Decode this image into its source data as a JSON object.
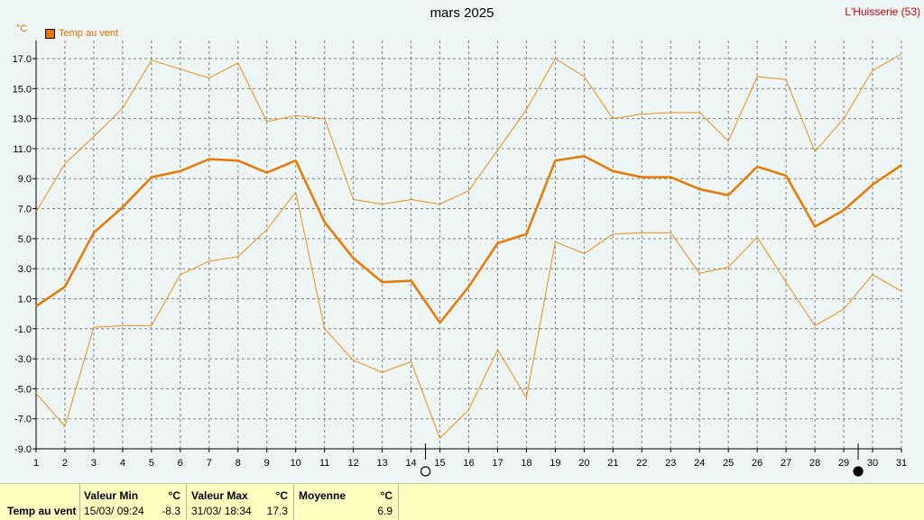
{
  "chart_data": {
    "type": "line",
    "title": "mars 2025",
    "station": "L'Huisserie (53)",
    "unit": "°C",
    "legend": "Temp au vent",
    "x": [
      1,
      2,
      3,
      4,
      5,
      6,
      7,
      8,
      9,
      10,
      11,
      12,
      13,
      14,
      15,
      16,
      17,
      18,
      19,
      20,
      21,
      22,
      23,
      24,
      25,
      26,
      27,
      28,
      29,
      30,
      31
    ],
    "yticks": [
      "-9.0",
      "-7.0",
      "-5.0",
      "-3.0",
      "-1.0",
      "1.0",
      "3.0",
      "5.0",
      "7.0",
      "9.0",
      "11.0",
      "13.0",
      "15.0",
      "17.0"
    ],
    "ylim": [
      -9,
      18
    ],
    "xlim": [
      1,
      31
    ],
    "series": [
      {
        "role": "max",
        "color": "#f08c14",
        "width": 1,
        "values": [
          6.8,
          10,
          11.8,
          13.7,
          16.9,
          16.3,
          15.7,
          16.7,
          12.8,
          13.2,
          13.0,
          7.6,
          7.3,
          7.6,
          7.3,
          8.2,
          10.9,
          13.6,
          17.0,
          15.8,
          13.0,
          13.3,
          13.4,
          13.4,
          11.5,
          15.8,
          15.6,
          10.8,
          13.0,
          16.2,
          17.3
        ]
      },
      {
        "role": "mean",
        "color": "#e87800",
        "width": 2.5,
        "values": [
          0.5,
          1.8,
          5.4,
          7.1,
          9.1,
          9.5,
          10.3,
          10.2,
          9.4,
          10.2,
          6.1,
          3.7,
          2.1,
          2.2,
          -0.6,
          1.8,
          4.7,
          5.3,
          10.2,
          10.5,
          9.5,
          9.1,
          9.1,
          8.3,
          7.9,
          9.8,
          9.2,
          5.8,
          6.9,
          8.6,
          9.9
        ]
      },
      {
        "role": "min",
        "color": "#f08c14",
        "width": 1,
        "values": [
          -5.3,
          -7.5,
          -0.9,
          -0.8,
          -0.8,
          2.6,
          3.5,
          3.8,
          5.6,
          8.1,
          -1.0,
          -3.1,
          -3.9,
          -3.2,
          -8.3,
          -6.4,
          -2.4,
          -5.6,
          4.8,
          4.0,
          5.3,
          5.4,
          5.4,
          2.7,
          3.1,
          5.1,
          2.1,
          -0.8,
          0.3,
          2.6,
          1.5
        ]
      }
    ],
    "moon_phases": [
      {
        "day": 14.5,
        "phase": "full"
      },
      {
        "day": 29.5,
        "phase": "new"
      }
    ],
    "grid": true
  },
  "footer": {
    "row_label": "Temp au vent",
    "min": {
      "label": "Valeur Min",
      "unit": "°C",
      "date": "15/03/  09:24",
      "value": "-8.3"
    },
    "max": {
      "label": "Valeur Max",
      "unit": "°C",
      "date": "31/03/  18:34",
      "value": "17.3"
    },
    "mean": {
      "label": "Moyenne",
      "unit": "°C",
      "value": "6.9"
    }
  }
}
